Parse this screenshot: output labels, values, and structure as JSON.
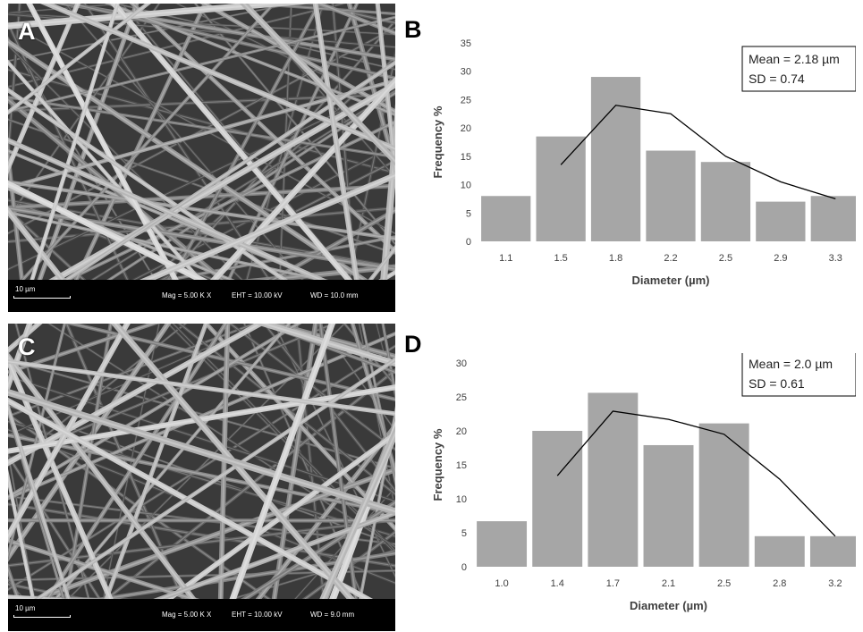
{
  "panels": {
    "a": {
      "letter": "A",
      "scale_label": "10 µm",
      "mag": "Mag =    5.00 K X",
      "eht": "EHT = 10.00 kV",
      "wd": "WD = 10.0 mm"
    },
    "b": {
      "letter": "B"
    },
    "c": {
      "letter": "C",
      "scale_label": "10 µm",
      "mag": "Mag =    5.00 K X",
      "eht": "EHT = 10.00 kV",
      "wd": "WD =  9.0 mm"
    },
    "d": {
      "letter": "D"
    }
  },
  "colors": {
    "bar": "#a6a6a6",
    "line": "#000000",
    "axis_text": "#404040",
    "sem_background": "#3a3a3a"
  },
  "chart_data": [
    {
      "type": "bar",
      "panel": "B",
      "categories": [
        "1.1",
        "1.5",
        "1.8",
        "2.2",
        "2.5",
        "2.9",
        "3.3"
      ],
      "values": [
        8,
        18.5,
        29,
        16,
        14,
        7,
        8
      ],
      "trend_line": {
        "x": [
          "1.5",
          "1.8",
          "2.2",
          "2.5",
          "2.9",
          "3.3"
        ],
        "values": [
          13.5,
          24,
          22.5,
          15,
          10.5,
          7.5
        ]
      },
      "xlabel": "Diameter (µm)",
      "ylabel": "Frequency %",
      "ylim": [
        0,
        35
      ],
      "yticks": [
        0,
        5,
        10,
        15,
        20,
        25,
        30,
        35
      ],
      "annotation": [
        "Mean = 2.18 µm",
        "SD = 0.74"
      ],
      "grid": false
    },
    {
      "type": "bar",
      "panel": "D",
      "categories": [
        "1.0",
        "1.4",
        "1.7",
        "2.1",
        "2.5",
        "2.8",
        "3.2"
      ],
      "values": [
        6.7,
        20,
        25.6,
        17.9,
        21.1,
        4.5,
        4.5
      ],
      "trend_line": {
        "x": [
          "1.4",
          "1.7",
          "2.1",
          "2.5",
          "2.8",
          "3.2"
        ],
        "values": [
          13.4,
          22.9,
          21.7,
          19.5,
          12.9,
          4.5
        ]
      },
      "xlabel": "Diameter (µm)",
      "ylabel": "Frequency %",
      "ylim": [
        0,
        30
      ],
      "yticks": [
        0,
        5,
        10,
        15,
        20,
        25,
        30
      ],
      "annotation": [
        "Mean = 2.0 µm",
        "SD = 0.61"
      ],
      "grid": false
    }
  ]
}
